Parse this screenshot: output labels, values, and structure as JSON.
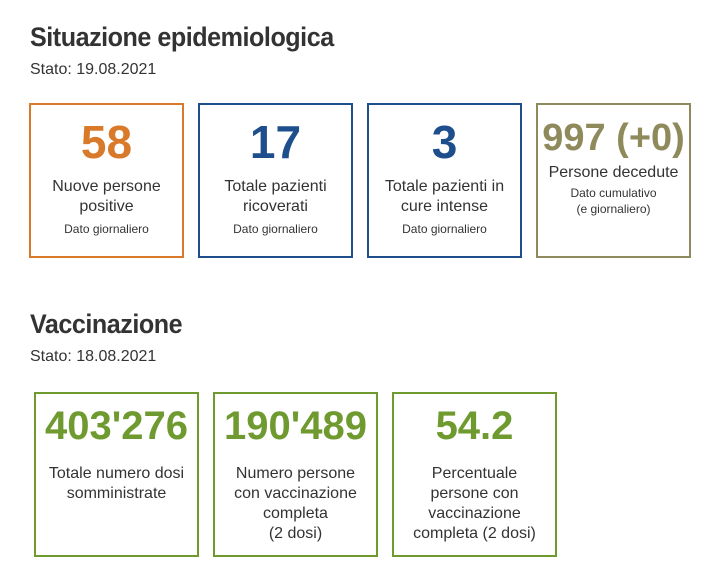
{
  "epidemiology": {
    "title": "Situazione epidemiologica",
    "date": "Stato: 19.08.2021",
    "cards": [
      {
        "value": "58",
        "label_line1": "Nuove persone",
        "label_line2": "positive",
        "note": "Dato giornaliero",
        "color": "#d97a2b"
      },
      {
        "value": "17",
        "label_line1": "Totale pazienti",
        "label_line2": "ricoverati",
        "note": "Dato giornaliero",
        "color": "#1f4e8c"
      },
      {
        "value": "3",
        "label_line1": "Totale pazienti in",
        "label_line2": "cure intense",
        "note": "Dato giornaliero",
        "color": "#1f4e8c"
      },
      {
        "value": "997 (+0)",
        "label_line1": "Persone decedute",
        "note_line1": "Dato cumulativo",
        "note_line2": "(e giornaliero)",
        "color": "#8f8a5c"
      }
    ]
  },
  "vaccination": {
    "title": "Vaccinazione",
    "date": "Stato: 18.08.2021",
    "color": "#6e9a2f",
    "cards": [
      {
        "value": "403'276",
        "lines": [
          "Totale numero dosi",
          "somministrate"
        ]
      },
      {
        "value": "190'489",
        "lines": [
          "Numero persone",
          "con vaccinazione",
          "completa",
          "(2 dosi)"
        ]
      },
      {
        "value": "54.2",
        "lines": [
          "Percentuale",
          "persone con",
          "vaccinazione",
          "completa (2 dosi)"
        ]
      }
    ]
  }
}
